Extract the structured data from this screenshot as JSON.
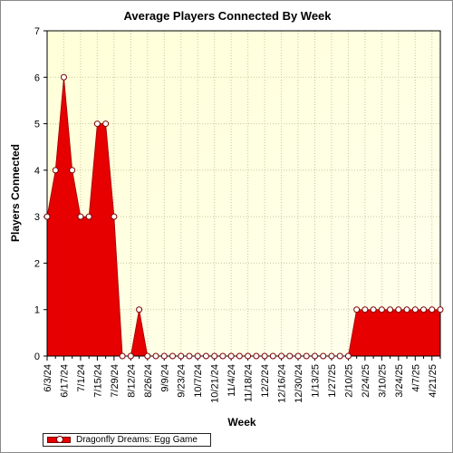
{
  "chart_data": {
    "type": "area",
    "title": "Average Players Connected By Week",
    "xlabel": "Week",
    "ylabel": "Players Connected",
    "ylim": [
      0,
      7
    ],
    "yticks": [
      0,
      1,
      2,
      3,
      4,
      5,
      6,
      7
    ],
    "grid": true,
    "legend_position": "bottom-left",
    "colors": {
      "fill": "#e60000",
      "plot_bg": "#ffffe0",
      "grid": "#c8c8a0"
    },
    "tick_labels": [
      "6/3/24",
      "6/17/24",
      "7/1/24",
      "7/15/24",
      "7/29/24",
      "8/12/24",
      "8/26/24",
      "9/9/24",
      "9/23/24",
      "10/7/24",
      "10/21/24",
      "11/4/24",
      "11/18/24",
      "12/2/24",
      "12/16/24",
      "12/30/24",
      "1/13/25",
      "1/27/25",
      "2/10/25",
      "2/24/25",
      "3/10/25",
      "3/24/25",
      "4/7/25",
      "4/21/25"
    ],
    "x": [
      "6/3/24",
      "6/10/24",
      "6/17/24",
      "6/24/24",
      "7/1/24",
      "7/8/24",
      "7/15/24",
      "7/22/24",
      "7/29/24",
      "8/5/24",
      "8/12/24",
      "8/19/24",
      "8/26/24",
      "9/2/24",
      "9/9/24",
      "9/16/24",
      "9/23/24",
      "9/30/24",
      "10/7/24",
      "10/14/24",
      "10/21/24",
      "10/28/24",
      "11/4/24",
      "11/11/24",
      "11/18/24",
      "11/25/24",
      "12/2/24",
      "12/9/24",
      "12/16/24",
      "12/23/24",
      "12/30/24",
      "1/6/25",
      "1/13/25",
      "1/20/25",
      "1/27/25",
      "2/3/25",
      "2/10/25",
      "2/17/25",
      "2/24/25",
      "3/3/25",
      "3/10/25",
      "3/17/25",
      "3/24/25",
      "3/31/25",
      "4/7/25",
      "4/14/25",
      "4/21/25",
      "4/28/25"
    ],
    "series": [
      {
        "name": "Dragonfly Dreams: Egg Game",
        "values": [
          3,
          4,
          6,
          4,
          3,
          3,
          5,
          5,
          3,
          0,
          0,
          1,
          0,
          0,
          0,
          0,
          0,
          0,
          0,
          0,
          0,
          0,
          0,
          0,
          0,
          0,
          0,
          0,
          0,
          0,
          0,
          0,
          0,
          0,
          0,
          0,
          0,
          1,
          1,
          1,
          1,
          1,
          1,
          1,
          1,
          1,
          1,
          1
        ]
      }
    ]
  }
}
